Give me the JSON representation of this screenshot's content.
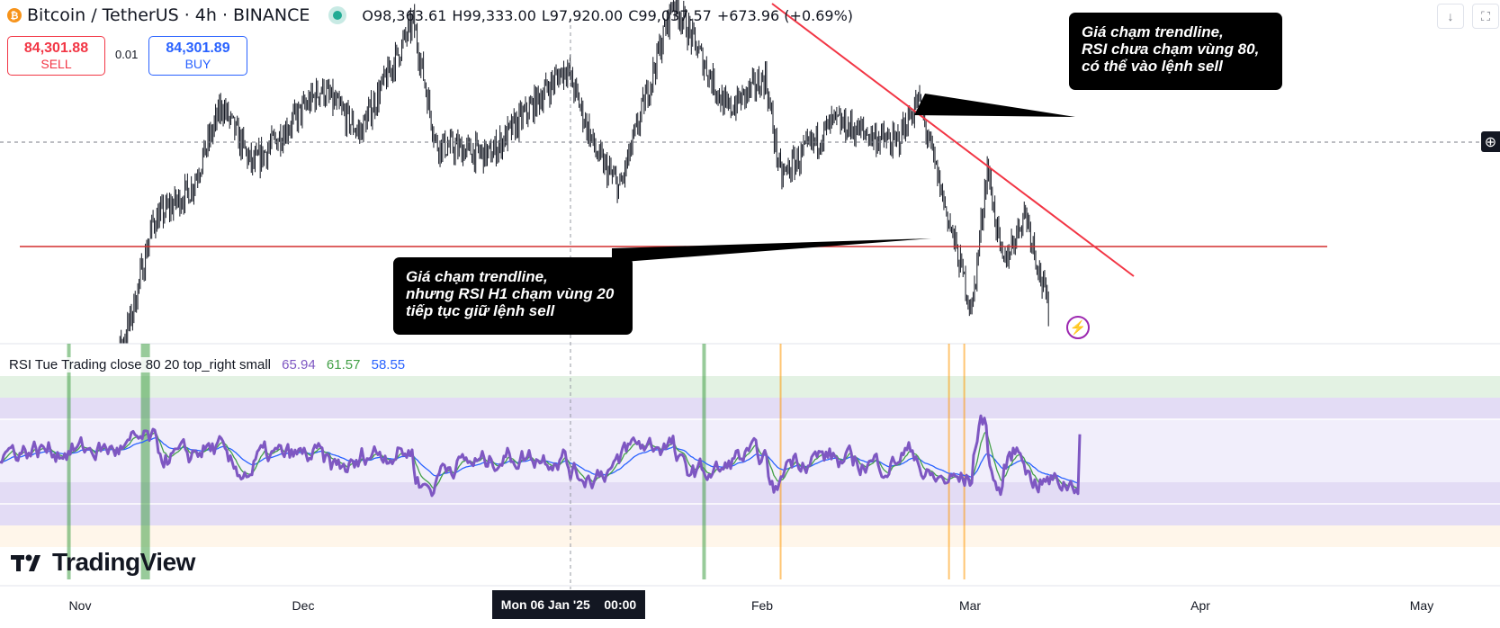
{
  "header": {
    "coin_icon": "bitcoin-icon",
    "symbol": "Bitcoin / TetherUS · 4h · BINANCE",
    "open": "O98,363.61",
    "high": "H99,333.00",
    "low": "L97,920.00",
    "close": "C99,037.57",
    "change": "+673.96 (+0.69%)"
  },
  "trade": {
    "sell_price": "84,301.88",
    "sell_label": "SELL",
    "quantity": "0.01",
    "buy_price": "84,301.89",
    "buy_label": "BUY"
  },
  "annotations": {
    "top_callout": [
      "Giá chạm trendline,",
      "RSI chưa chạm vùng 80,",
      "có thể vào lệnh sell"
    ],
    "bottom_callout": [
      "Giá chạm trendline,",
      "nhưng RSI H1 chạm vùng 20",
      "tiếp tục giữ lệnh sell"
    ]
  },
  "rsi_legend": {
    "title": "RSI Tue Trading close 80 20 top_right small",
    "v1": "65.94",
    "v2": "61.57",
    "v3": "58.55"
  },
  "brand": {
    "logo_text": "TradingView"
  },
  "x_axis": {
    "labels": [
      "Nov",
      "Dec",
      "Feb",
      "Mar",
      "Apr",
      "May"
    ],
    "crosshair_label": "Mon 06 Jan '25    00:00"
  },
  "colors": {
    "up": "#22ab94",
    "down": "#f23645",
    "rsi": "#7e57c2",
    "rsi_ma": "#43a047",
    "rsi_ma2": "#2962ff",
    "trendline": "#f23645",
    "support": "#d32f2f"
  },
  "chart_data": [
    {
      "type": "candlestick",
      "title": "Bitcoin / TetherUS · 4h · BINANCE",
      "x_range": [
        "2024-10-24",
        "2025-05-08"
      ],
      "visible_close_path": [
        [
          "2024-11-06",
          72000
        ],
        [
          "2024-11-10",
          79000
        ],
        [
          "2024-11-13",
          88000
        ],
        [
          "2024-11-18",
          91000
        ],
        [
          "2024-11-22",
          98500
        ],
        [
          "2024-11-26",
          93000
        ],
        [
          "2024-12-05",
          100000
        ],
        [
          "2024-12-10",
          96000
        ],
        [
          "2024-12-17",
          106000
        ],
        [
          "2024-12-20",
          95000
        ],
        [
          "2024-12-27",
          94000
        ],
        [
          "2025-01-06",
          102000
        ],
        [
          "2025-01-10",
          94000
        ],
        [
          "2025-01-13",
          91000
        ],
        [
          "2025-01-20",
          108000
        ],
        [
          "2025-01-27",
          98000
        ],
        [
          "2025-02-01",
          101000
        ],
        [
          "2025-02-03",
          92000
        ],
        [
          "2025-02-10",
          97000
        ],
        [
          "2025-02-18",
          95000
        ],
        [
          "2025-02-21",
          99000
        ],
        [
          "2025-02-25",
          88000
        ],
        [
          "2025-02-28",
          80000
        ],
        [
          "2025-03-02",
          93000
        ],
        [
          "2025-03-04",
          84000
        ],
        [
          "2025-03-07",
          89000
        ],
        [
          "2025-03-10",
          80000
        ]
      ],
      "trendline": {
        "start": [
          "2025-01-25",
          108500
        ],
        "end": [
          "2025-03-24",
          86500
        ]
      },
      "support_level": 91500
    },
    {
      "type": "line",
      "title": "RSI Tue Trading close 80 20 top_right small",
      "ylim": [
        0,
        100
      ],
      "bands": [
        80,
        20
      ],
      "series": [
        {
          "name": "RSI",
          "color": "#7e57c2"
        },
        {
          "name": "MA",
          "color": "#43a047"
        },
        {
          "name": "MA2",
          "color": "#2962ff"
        }
      ],
      "last_values": [
        65.94,
        61.57,
        58.55
      ],
      "overbought_signals": [
        "2024-11-02",
        "2024-11-12",
        "2025-01-24"
      ],
      "oversold_signals": [
        "2025-02-03",
        "2025-02-25",
        "2025-02-27"
      ]
    }
  ]
}
